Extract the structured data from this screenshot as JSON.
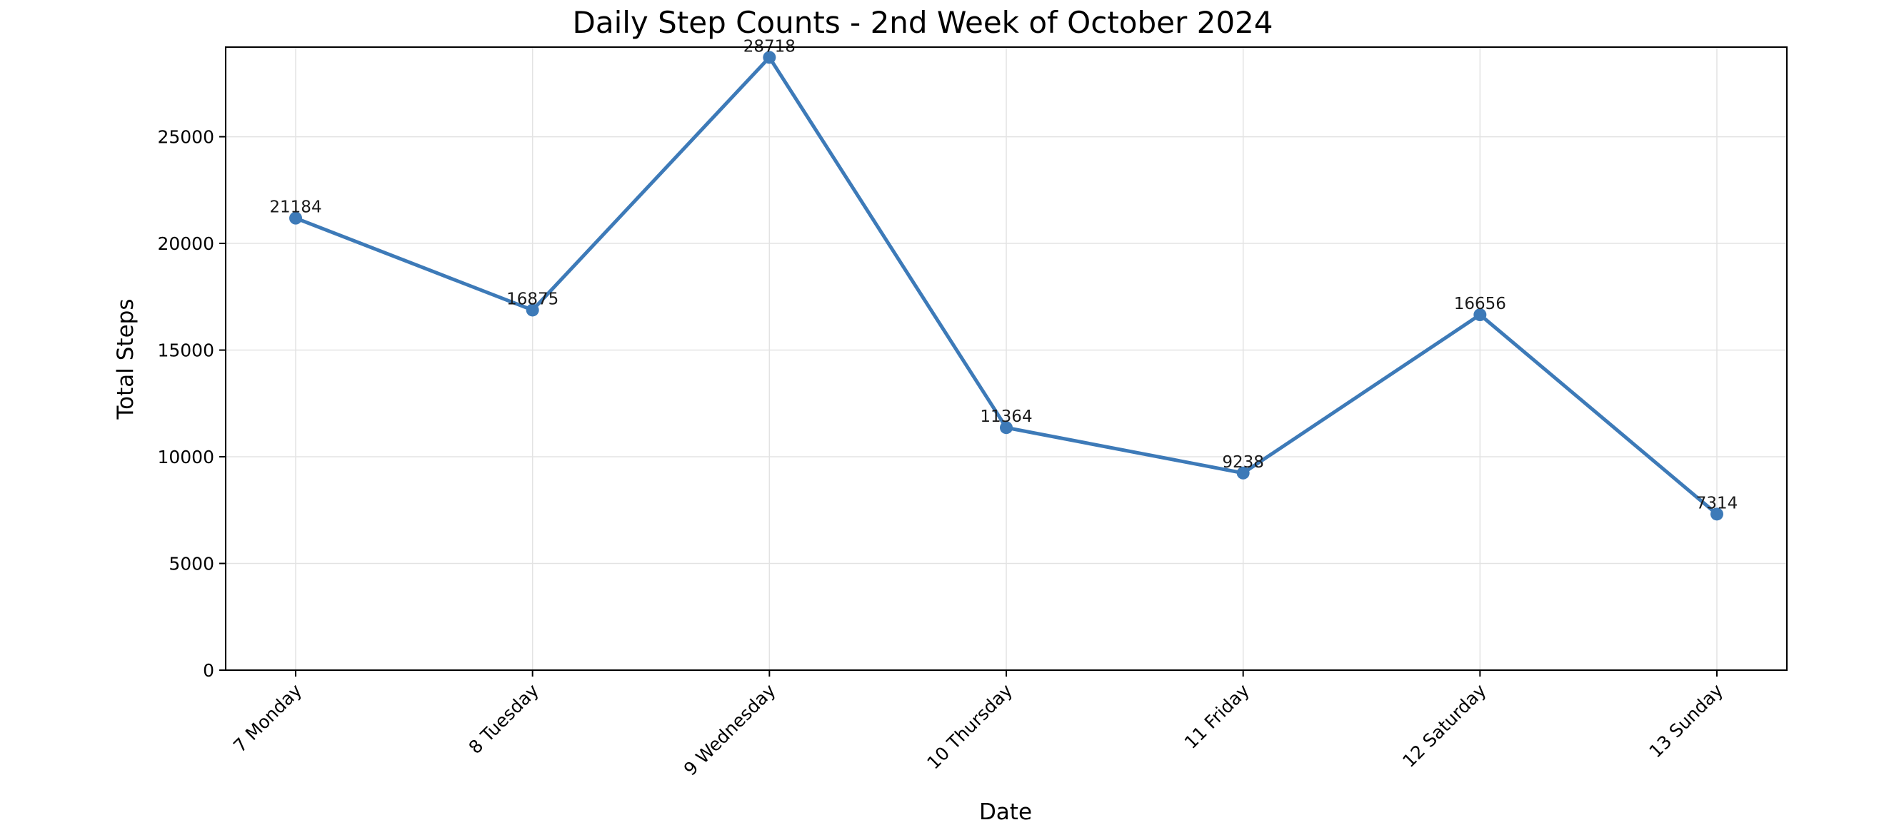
{
  "chart_data": {
    "type": "line",
    "title": "Daily Step Counts - 2nd Week of October 2024",
    "xlabel": "Date",
    "ylabel": "Total Steps",
    "categories": [
      "7 Monday",
      "8 Tuesday",
      "9 Wednesday",
      "10 Thursday",
      "11 Friday",
      "12 Saturday",
      "13 Sunday"
    ],
    "series": [
      {
        "values": [
          21184,
          16875,
          28718,
          11364,
          9238,
          16656,
          7314
        ],
        "color": "#3d7ab8",
        "marker": "circle"
      }
    ],
    "data_labels": [
      "21184",
      "16875",
      "28718",
      "11364",
      "9238",
      "16656",
      "7314"
    ],
    "ylim": [
      0,
      29200
    ],
    "yticks": [
      0,
      5000,
      10000,
      15000,
      20000,
      25000
    ],
    "ytick_labels": [
      "0",
      "5000",
      "10000",
      "15000",
      "20000",
      "25000"
    ],
    "grid": true,
    "grid_color": "#e3e3e3",
    "legend": "none"
  }
}
